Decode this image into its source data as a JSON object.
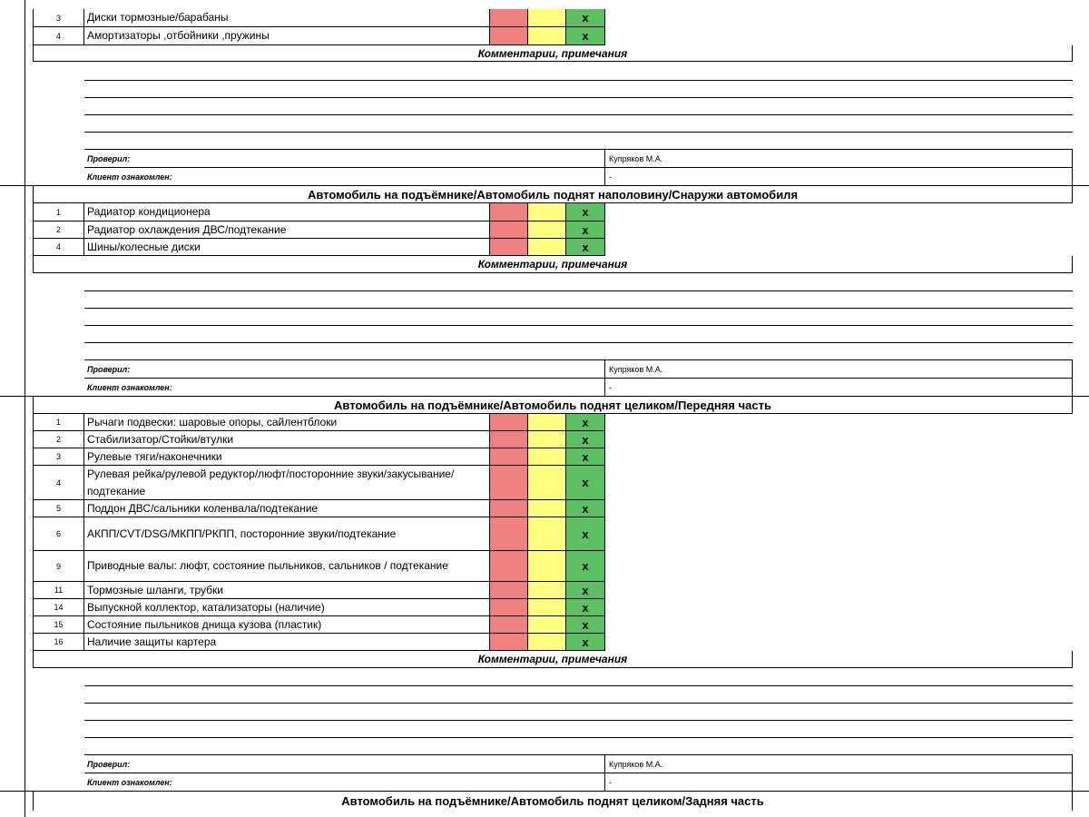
{
  "section1": {
    "items": [
      {
        "num": "3",
        "name": "Диски тормозные/барабаны",
        "mark": "x"
      },
      {
        "num": "4",
        "name": "Амортизаторы ,отбойники ,пружины",
        "mark": "x"
      }
    ],
    "comments_label": "Комментарии, примечания",
    "checked_label": "Проверил:",
    "checked_value": "Купряков М.А.",
    "client_label": "Клиент ознакомлен:",
    "client_value": "-"
  },
  "section2": {
    "title": "Автомобиль на подъёмнике/Автомобиль поднят наполовину/Снаружи автомобиля",
    "items": [
      {
        "num": "1",
        "name": "Радиатор кондиционера",
        "mark": "x"
      },
      {
        "num": "2",
        "name": "Радиатор охлаждения ДВС/подтекание",
        "mark": "x"
      },
      {
        "num": "4",
        "name": "Шины/колесные диски",
        "mark": "x"
      }
    ],
    "comments_label": "Комментарии, примечания",
    "checked_label": "Проверил:",
    "checked_value": "Купряков М.А.",
    "client_label": "Клиент ознакомлен:",
    "client_value": "-"
  },
  "section3": {
    "title": "Автомобиль на подъёмнике/Автомобиль поднят целиком/Передняя часть",
    "items": [
      {
        "num": "1",
        "name": "Рычаги подвески: шаровые опоры, сайлентблоки",
        "mark": "x"
      },
      {
        "num": "2",
        "name": "Стабилизатор/Стойки/втулки",
        "mark": "x"
      },
      {
        "num": "3",
        "name": "Рулевые тяги/наконечники",
        "mark": "x"
      },
      {
        "num": "4",
        "name": "Рулевая рейка/рулевой редуктор/люфт/посторонние звуки/закусывание/подтекание",
        "mark": "x"
      },
      {
        "num": "5",
        "name": "Поддон ДВС/сальники коленвала/подтекание",
        "mark": "x"
      },
      {
        "num": "6",
        "name": "АКПП/CVT/DSG/МКПП/РКПП, посторонние звуки/подтекание",
        "mark": "x"
      },
      {
        "num": "9",
        "name": "Приводные валы: люфт, состояние пыльников, сальников / подтекание",
        "mark": "x"
      },
      {
        "num": "11",
        "name": "Тормозные шланги, трубки",
        "mark": "x"
      },
      {
        "num": "14",
        "name": "Выпускной коллектор, катализаторы (наличие)",
        "mark": "x"
      },
      {
        "num": "15",
        "name": "Состояние пыльников днища кузова (пластик)",
        "mark": "x"
      },
      {
        "num": "16",
        "name": "Наличие защиты картера",
        "mark": "x"
      }
    ],
    "comments_label": "Комментарии, примечания",
    "checked_label": "Проверил:",
    "checked_value": "Купряков М.А.",
    "client_label": "Клиент ознакомлен:",
    "client_value": "-"
  },
  "section4": {
    "title": "Автомобиль на подъёмнике/Автомобиль поднят целиком/Задняя часть"
  }
}
